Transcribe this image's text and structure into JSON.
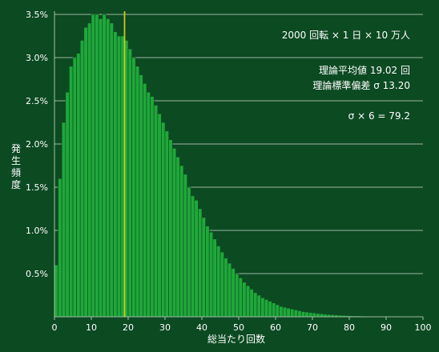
{
  "chart_data": {
    "type": "bar",
    "xlabel": "総当たり回数",
    "ylabel": "発生頻度",
    "xlim": [
      0,
      100
    ],
    "ylim": [
      0,
      3.5
    ],
    "x_ticks": [
      0,
      10,
      20,
      30,
      40,
      50,
      60,
      70,
      80,
      90,
      100
    ],
    "y_ticks": [
      {
        "value": 0.5,
        "label": "0.5%"
      },
      {
        "value": 1.0,
        "label": "1.0%"
      },
      {
        "value": 1.5,
        "label": "1.5%"
      },
      {
        "value": 2.0,
        "label": "2.0%"
      },
      {
        "value": 2.5,
        "label": "2.5%"
      },
      {
        "value": 3.0,
        "label": "3.0%"
      },
      {
        "value": 3.5,
        "label": "3.5%"
      }
    ],
    "grid": {
      "horizontal": true,
      "vertical": false
    },
    "annotations": [
      {
        "text": "2000 回転 × 1 日 × 10 万人"
      },
      {
        "text": "理論平均値 19.02 回"
      },
      {
        "text": "理論標準偏差 σ  13.20"
      },
      {
        "text": "σ × 6 = 79.2"
      }
    ],
    "mean_line": {
      "x": 19.02
    },
    "x": [
      0,
      1,
      2,
      3,
      4,
      5,
      6,
      7,
      8,
      9,
      10,
      11,
      12,
      13,
      14,
      15,
      16,
      17,
      18,
      19,
      20,
      21,
      22,
      23,
      24,
      25,
      26,
      27,
      28,
      29,
      30,
      31,
      32,
      33,
      34,
      35,
      36,
      37,
      38,
      39,
      40,
      41,
      42,
      43,
      44,
      45,
      46,
      47,
      48,
      49,
      50,
      51,
      52,
      53,
      54,
      55,
      56,
      57,
      58,
      59,
      60,
      61,
      62,
      63,
      64,
      65,
      66,
      67,
      68,
      69,
      70,
      71,
      72,
      73,
      74,
      75,
      76,
      77,
      78,
      79,
      80,
      81,
      82,
      83,
      84,
      85,
      86,
      87,
      88,
      89,
      90,
      91,
      92,
      93,
      94,
      95,
      96,
      97,
      98,
      99
    ],
    "values": [
      0.6,
      1.6,
      2.25,
      2.6,
      2.9,
      3.0,
      3.05,
      3.2,
      3.35,
      3.4,
      3.5,
      3.5,
      3.45,
      3.5,
      3.45,
      3.4,
      3.3,
      3.25,
      3.25,
      3.2,
      3.1,
      3.0,
      2.9,
      2.8,
      2.7,
      2.6,
      2.55,
      2.45,
      2.35,
      2.25,
      2.15,
      2.05,
      1.95,
      1.85,
      1.75,
      1.65,
      1.5,
      1.4,
      1.35,
      1.25,
      1.15,
      1.05,
      0.98,
      0.9,
      0.82,
      0.75,
      0.68,
      0.62,
      0.56,
      0.5,
      0.45,
      0.4,
      0.36,
      0.32,
      0.28,
      0.25,
      0.22,
      0.2,
      0.18,
      0.16,
      0.14,
      0.12,
      0.11,
      0.1,
      0.09,
      0.08,
      0.07,
      0.06,
      0.055,
      0.05,
      0.045,
      0.04,
      0.035,
      0.03,
      0.027,
      0.024,
      0.021,
      0.018,
      0.016,
      0.014,
      0.012,
      0.011,
      0.01,
      0.009,
      0.008,
      0.007,
      0.006,
      0.005,
      0.005,
      0.004,
      0.004,
      0.003,
      0.003,
      0.003,
      0.002,
      0.002,
      0.002,
      0.002,
      0.001,
      0.001
    ],
    "colors": {
      "background": "#0c4a22",
      "bar": "#1fa83a",
      "bar_edge": "#0c4a22",
      "grid": "#cfdccf",
      "mean_line": "#c8c820",
      "text": "#ffffff"
    }
  }
}
